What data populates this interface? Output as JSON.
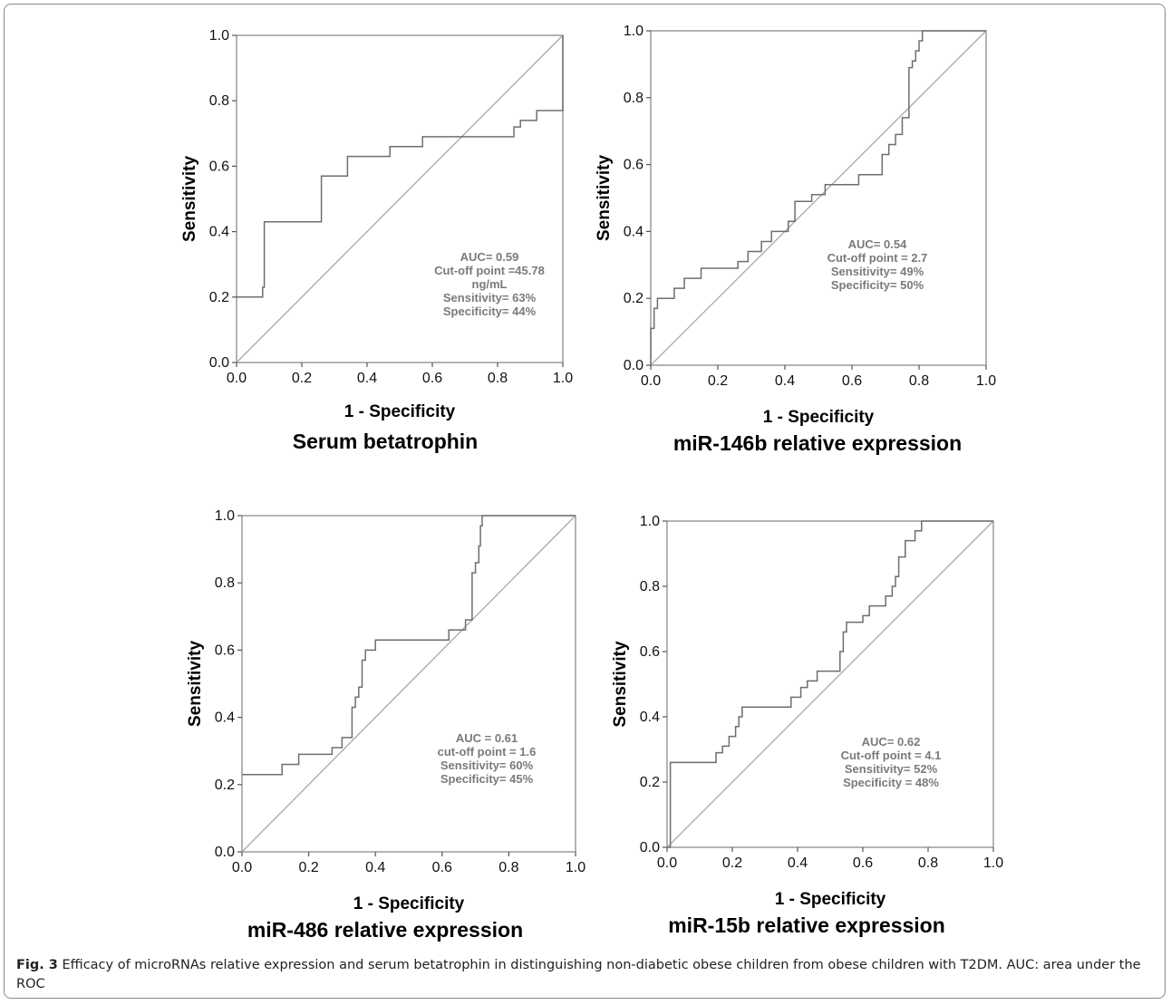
{
  "chart_data": [
    {
      "type": "line",
      "panel_label": "Serum betatrophin",
      "xlabel": "1 - Specificity",
      "ylabel": "Sensitivity",
      "xlim": [
        0,
        1
      ],
      "ylim": [
        0,
        1
      ],
      "x_ticks": [
        "0.0",
        "0.2",
        "0.4",
        "0.6",
        "0.8",
        "1.0"
      ],
      "y_ticks": [
        "0.0",
        "0.2",
        "0.4",
        "0.6",
        "0.8",
        "1.0"
      ],
      "grid": false,
      "reference_line": [
        [
          0,
          0
        ],
        [
          1,
          1
        ]
      ],
      "annotation": [
        "AUC= 0.59",
        "Cut-off point =45.78",
        "ng/mL",
        "Sensitivity= 63%",
        "Specificity= 44%"
      ],
      "series": [
        {
          "x": [
            0,
            0.08,
            0.08,
            0.085,
            0.085,
            0.26,
            0.26,
            0.34,
            0.34,
            0.47,
            0.47,
            0.57,
            0.57,
            0.85,
            0.85,
            0.87,
            0.87,
            0.92,
            0.92,
            0.98,
            0.98,
            1.0,
            1.0
          ],
          "y": [
            0.2,
            0.2,
            0.23,
            0.23,
            0.43,
            0.43,
            0.57,
            0.57,
            0.63,
            0.63,
            0.66,
            0.66,
            0.69,
            0.69,
            0.72,
            0.72,
            0.74,
            0.74,
            0.77,
            0.77,
            0.77,
            0.77,
            1.0
          ]
        }
      ]
    },
    {
      "type": "line",
      "panel_label": "miR-146b relative expression",
      "xlabel": "1 - Specificity",
      "ylabel": "Sensitivity",
      "xlim": [
        0,
        1
      ],
      "ylim": [
        0,
        1
      ],
      "x_ticks": [
        "0.0",
        "0.2",
        "0.4",
        "0.6",
        "0.8",
        "1.0"
      ],
      "y_ticks": [
        "0.0",
        "0.2",
        "0.4",
        "0.6",
        "0.8",
        "1.0"
      ],
      "grid": false,
      "reference_line": [
        [
          0,
          0
        ],
        [
          1,
          1
        ]
      ],
      "annotation": [
        "AUC= 0.54",
        "Cut-off point = 2.7",
        "Sensitivity= 49%",
        "Specificity= 50%"
      ],
      "series": [
        {
          "x": [
            0,
            0,
            0.01,
            0.01,
            0.02,
            0.02,
            0.07,
            0.07,
            0.1,
            0.1,
            0.15,
            0.15,
            0.26,
            0.26,
            0.29,
            0.29,
            0.33,
            0.33,
            0.36,
            0.36,
            0.41,
            0.41,
            0.43,
            0.43,
            0.48,
            0.48,
            0.52,
            0.52,
            0.62,
            0.62,
            0.69,
            0.69,
            0.71,
            0.71,
            0.73,
            0.73,
            0.75,
            0.75,
            0.77,
            0.77,
            0.78,
            0.78,
            0.79,
            0.79,
            0.8,
            0.8,
            0.81,
            0.81,
            0.84,
            0.84,
            0.86,
            0.86,
            1.0
          ],
          "y": [
            0,
            0.11,
            0.11,
            0.17,
            0.17,
            0.2,
            0.2,
            0.23,
            0.23,
            0.26,
            0.26,
            0.29,
            0.29,
            0.31,
            0.31,
            0.34,
            0.34,
            0.37,
            0.37,
            0.4,
            0.4,
            0.43,
            0.43,
            0.49,
            0.49,
            0.51,
            0.51,
            0.54,
            0.54,
            0.57,
            0.57,
            0.63,
            0.63,
            0.66,
            0.66,
            0.69,
            0.69,
            0.74,
            0.74,
            0.89,
            0.89,
            0.91,
            0.91,
            0.94,
            0.94,
            0.97,
            0.97,
            1.0,
            1.0,
            1.0,
            1.0,
            1.0,
            1.0
          ]
        }
      ]
    },
    {
      "type": "line",
      "panel_label": "miR-486 relative expression",
      "xlabel": "1 - Specificity",
      "ylabel": "Sensitivity",
      "xlim": [
        0,
        1
      ],
      "ylim": [
        0,
        1
      ],
      "x_ticks": [
        "0.0",
        "0.2",
        "0.4",
        "0.6",
        "0.8",
        "1.0"
      ],
      "y_ticks": [
        "0.0",
        "0.2",
        "0.4",
        "0.6",
        "0.8",
        "1.0"
      ],
      "grid": false,
      "reference_line": [
        [
          0,
          0
        ],
        [
          1,
          1
        ]
      ],
      "annotation": [
        "AUC = 0.61",
        "cut-off point = 1.6",
        "Sensitivity= 60%",
        "Specificity= 45%"
      ],
      "series": [
        {
          "x": [
            0,
            0.12,
            0.12,
            0.17,
            0.17,
            0.27,
            0.27,
            0.3,
            0.3,
            0.33,
            0.33,
            0.34,
            0.34,
            0.35,
            0.35,
            0.36,
            0.36,
            0.37,
            0.37,
            0.4,
            0.4,
            0.62,
            0.62,
            0.67,
            0.67,
            0.69,
            0.69,
            0.7,
            0.7,
            0.71,
            0.71,
            0.715,
            0.715,
            0.72,
            0.72,
            0.73,
            0.73,
            1.0
          ],
          "y": [
            0.23,
            0.23,
            0.26,
            0.26,
            0.29,
            0.29,
            0.31,
            0.31,
            0.34,
            0.34,
            0.43,
            0.43,
            0.46,
            0.46,
            0.49,
            0.49,
            0.57,
            0.57,
            0.6,
            0.6,
            0.63,
            0.63,
            0.66,
            0.66,
            0.69,
            0.69,
            0.83,
            0.83,
            0.86,
            0.86,
            0.91,
            0.91,
            0.97,
            0.97,
            1.0,
            1.0,
            1.0,
            1.0
          ]
        }
      ]
    },
    {
      "type": "line",
      "panel_label": "miR-15b relative expression",
      "xlabel": "1 - Specificity",
      "ylabel": "Sensitivity",
      "xlim": [
        0,
        1
      ],
      "ylim": [
        0,
        1
      ],
      "x_ticks": [
        "0.0",
        "0.2",
        "0.4",
        "0.6",
        "0.8",
        "1.0"
      ],
      "y_ticks": [
        "0.0",
        "0.2",
        "0.4",
        "0.6",
        "0.8",
        "1.0"
      ],
      "grid": false,
      "reference_line": [
        [
          0,
          0
        ],
        [
          1,
          1
        ]
      ],
      "annotation": [
        "AUC= 0.62",
        "Cut-off point = 4.1",
        "Sensitivity= 52%",
        "Specificity = 48%"
      ],
      "series": [
        {
          "x": [
            0,
            0.01,
            0.01,
            0.15,
            0.15,
            0.17,
            0.17,
            0.19,
            0.19,
            0.21,
            0.21,
            0.22,
            0.22,
            0.23,
            0.23,
            0.38,
            0.38,
            0.41,
            0.41,
            0.43,
            0.43,
            0.46,
            0.46,
            0.53,
            0.53,
            0.54,
            0.54,
            0.55,
            0.55,
            0.6,
            0.6,
            0.62,
            0.62,
            0.67,
            0.67,
            0.69,
            0.69,
            0.7,
            0.7,
            0.71,
            0.71,
            0.73,
            0.73,
            0.76,
            0.76,
            0.78,
            0.78,
            1.0
          ],
          "y": [
            0,
            0,
            0.26,
            0.26,
            0.29,
            0.29,
            0.31,
            0.31,
            0.34,
            0.34,
            0.37,
            0.37,
            0.4,
            0.4,
            0.43,
            0.43,
            0.46,
            0.46,
            0.49,
            0.49,
            0.51,
            0.51,
            0.54,
            0.54,
            0.6,
            0.6,
            0.66,
            0.66,
            0.69,
            0.69,
            0.71,
            0.71,
            0.74,
            0.74,
            0.77,
            0.77,
            0.8,
            0.8,
            0.83,
            0.83,
            0.89,
            0.89,
            0.94,
            0.94,
            0.97,
            0.97,
            1.0,
            1.0
          ]
        }
      ]
    }
  ],
  "caption": {
    "fig_label": "Fig. 3",
    "text": " Efficacy of microRNAs relative expression and serum betatrophin in distinguishing non-diabetic obese children from obese children with T2DM. AUC: area under the ROC"
  }
}
